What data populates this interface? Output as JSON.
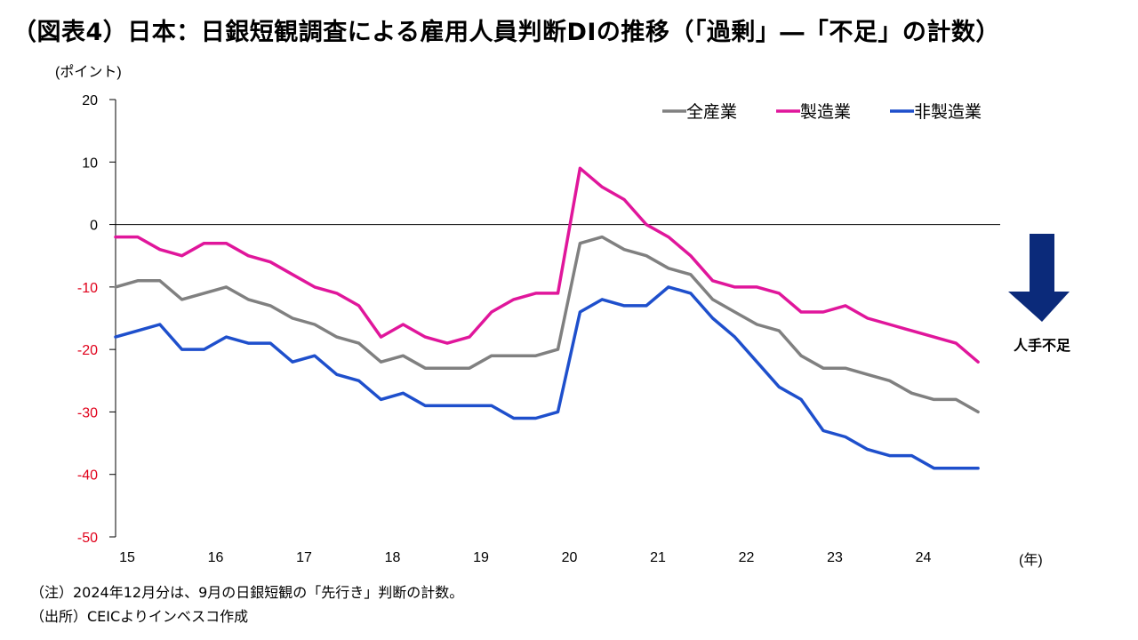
{
  "title": "（図表4）日本：日銀短観調査による雇用人員判断DIの推移（「過剰」―「不足」の計数）",
  "notes": [
    "（注）2024年12月分は、9月の日銀短観の「先行き」判断の計数。",
    "（出所）CEICよりインベスコ作成"
  ],
  "colors": {
    "all_industries": "#808080",
    "manufacturing": "#e0169b",
    "non_manufacturing": "#1e4fcc",
    "arrow": "#0b2a7a",
    "negative_tick": "#e0001a"
  },
  "chart_data": {
    "type": "line",
    "yunit": "(ポイント)",
    "xunit": "(年)",
    "ylim": [
      -50,
      20
    ],
    "yticks": [
      20,
      10,
      0,
      -10,
      -20,
      -30,
      -40,
      -50
    ],
    "xlim": [
      2015,
      2025
    ],
    "xticks": [
      2015,
      2016,
      2017,
      2018,
      2019,
      2020,
      2021,
      2022,
      2023,
      2024
    ],
    "xtick_labels": [
      "15",
      "16",
      "17",
      "18",
      "19",
      "20",
      "21",
      "22",
      "23",
      "24"
    ],
    "legend_position": "top-right",
    "arrow_label": "人手不足",
    "x": [
      2015.0,
      2015.25,
      2015.5,
      2015.75,
      2016.0,
      2016.25,
      2016.5,
      2016.75,
      2017.0,
      2017.25,
      2017.5,
      2017.75,
      2018.0,
      2018.25,
      2018.5,
      2018.75,
      2019.0,
      2019.25,
      2019.5,
      2019.75,
      2020.0,
      2020.25,
      2020.5,
      2020.75,
      2021.0,
      2021.25,
      2021.5,
      2021.75,
      2022.0,
      2022.25,
      2022.5,
      2022.75,
      2023.0,
      2023.25,
      2023.5,
      2023.75,
      2024.0,
      2024.25,
      2024.5,
      2024.75
    ],
    "series": [
      {
        "name": "全産業",
        "color_key": "all_industries",
        "values": [
          -10,
          -9,
          -9,
          -12,
          -11,
          -10,
          -12,
          -13,
          -15,
          -16,
          -18,
          -19,
          -22,
          -21,
          -23,
          -23,
          -23,
          -21,
          -21,
          -21,
          -20,
          -3,
          -2,
          -4,
          -5,
          -7,
          -8,
          -12,
          -14,
          -16,
          -17,
          -21,
          -23,
          -23,
          -24,
          -25,
          -27,
          -28,
          -28,
          -30
        ]
      },
      {
        "name": "製造業",
        "color_key": "manufacturing",
        "values": [
          -2,
          -2,
          -4,
          -5,
          -3,
          -3,
          -5,
          -6,
          -8,
          -10,
          -11,
          -13,
          -18,
          -16,
          -18,
          -19,
          -18,
          -14,
          -12,
          -11,
          -11,
          9,
          6,
          4,
          0,
          -2,
          -5,
          -9,
          -10,
          -10,
          -11,
          -14,
          -14,
          -13,
          -15,
          -16,
          -17,
          -18,
          -19,
          -22
        ]
      },
      {
        "name": "非製造業",
        "color_key": "non_manufacturing",
        "values": [
          -18,
          -17,
          -16,
          -20,
          -20,
          -18,
          -19,
          -19,
          -22,
          -21,
          -24,
          -25,
          -28,
          -27,
          -29,
          -29,
          -29,
          -29,
          -31,
          -31,
          -30,
          -14,
          -12,
          -13,
          -13,
          -10,
          -11,
          -15,
          -18,
          -22,
          -26,
          -28,
          -33,
          -34,
          -36,
          -37,
          -37,
          -39,
          -39,
          -39
        ]
      }
    ]
  }
}
